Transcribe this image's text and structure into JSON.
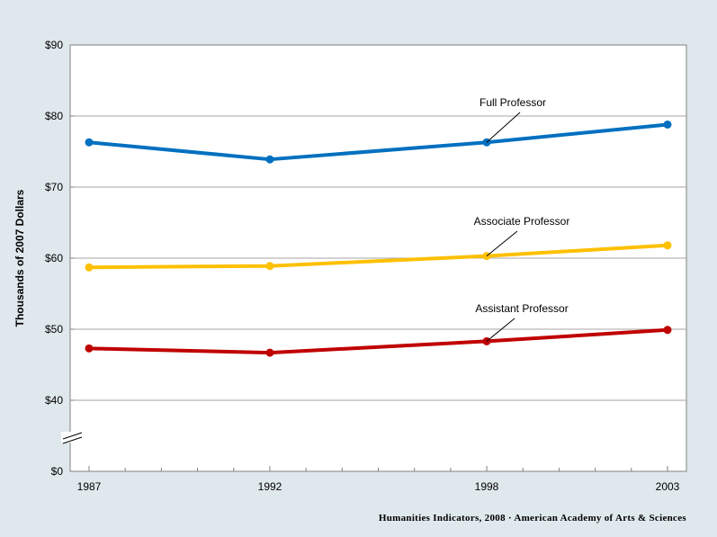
{
  "chart_data": {
    "type": "line",
    "title": "",
    "xlabel": "",
    "ylabel": "Thousands of 2007 Dollars",
    "x": [
      "1987",
      "1992",
      "1998",
      "2003"
    ],
    "ylim": [
      0,
      90
    ],
    "yticks": [
      "$0",
      "$40",
      "$50",
      "$60",
      "$70",
      "$80",
      "$90"
    ],
    "axis_break": true,
    "grid": true,
    "series": [
      {
        "name": "Full Professor",
        "values": [
          76.3,
          73.9,
          76.3,
          78.8
        ],
        "color": "#0070c0"
      },
      {
        "name": "Associate Professor",
        "values": [
          58.7,
          58.9,
          60.3,
          61.8
        ],
        "color": "#ffc000"
      },
      {
        "name": "Assistant Professor",
        "values": [
          47.3,
          46.7,
          48.3,
          49.9
        ],
        "color": "#c00000"
      }
    ]
  },
  "footer": "Humanities Indicators, 2008 · American Academy of Arts & Sciences"
}
